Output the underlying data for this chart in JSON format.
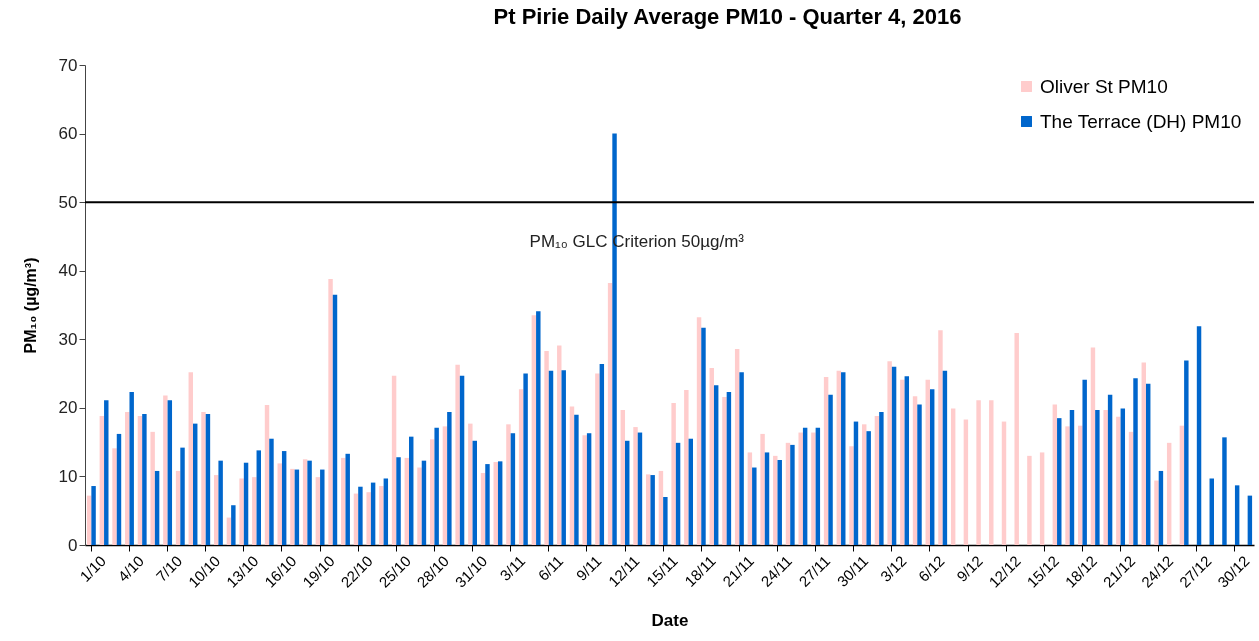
{
  "chart_data": {
    "type": "bar",
    "title": "Pt Pirie Daily Average PM10 - Quarter 4, 2016",
    "xlabel": "Date",
    "ylabel": "PM₁₀  (µg/m³)",
    "categories": [
      "1/10",
      null,
      null,
      "4/10",
      null,
      null,
      "7/10",
      null,
      null,
      "10/10",
      null,
      null,
      "13/10",
      null,
      null,
      "16/10",
      null,
      null,
      "19/10",
      null,
      null,
      "22/10",
      null,
      null,
      "25/10",
      null,
      null,
      "28/10",
      null,
      null,
      "31/10",
      null,
      null,
      "3/11",
      null,
      null,
      "6/11",
      null,
      null,
      "9/11",
      null,
      null,
      "12/11",
      null,
      null,
      "15/11",
      null,
      null,
      "18/11",
      null,
      null,
      "21/11",
      null,
      null,
      "24/11",
      null,
      null,
      "27/11",
      null,
      null,
      "30/11",
      null,
      null,
      "3/12",
      null,
      null,
      "6/12",
      null,
      null,
      "9/12",
      null,
      null,
      "12/12",
      null,
      null,
      "15/12",
      null,
      null,
      "18/12",
      null,
      null,
      "21/12",
      null,
      null,
      "24/12",
      null,
      null,
      "27/12",
      null,
      null,
      "30/12",
      null
    ],
    "series": [
      {
        "name": "Oliver St PM10",
        "color": "#ffcccc",
        "values": [
          7.2,
          18.8,
          14.1,
          19.4,
          18.8,
          16.5,
          21.8,
          10.8,
          25.2,
          19.4,
          10.2,
          4.0,
          9.7,
          9.9,
          20.4,
          11.9,
          11.1,
          12.5,
          9.9,
          38.8,
          12.7,
          7.5,
          7.7,
          8.6,
          24.7,
          12.7,
          11.3,
          15.4,
          17.3,
          26.3,
          17.7,
          10.5,
          12.1,
          17.6,
          22.7,
          33.5,
          28.3,
          29.1,
          20.2,
          16.0,
          25.0,
          38.2,
          19.7,
          17.2,
          10.3,
          10.8,
          20.7,
          22.6,
          33.2,
          25.8,
          21.6,
          28.6,
          13.5,
          16.2,
          13.0,
          14.9,
          16.4,
          16.4,
          24.5,
          25.4,
          14.4,
          17.6,
          18.8,
          26.8,
          24.1,
          21.7,
          24.1,
          31.3,
          19.9,
          18.3,
          21.1,
          21.1,
          18.0,
          30.9,
          13.0,
          13.5,
          20.5,
          17.3,
          17.4,
          28.8,
          19.7,
          18.7,
          16.5,
          26.6,
          9.4,
          14.9,
          17.4,
          null,
          null,
          null,
          null,
          null
        ]
      },
      {
        "name": "The Terrace (DH) PM10",
        "color": "#0066cc",
        "values": [
          8.6,
          21.1,
          16.2,
          22.3,
          19.1,
          10.8,
          21.1,
          14.2,
          17.7,
          19.1,
          12.3,
          5.8,
          12.0,
          13.8,
          15.5,
          13.7,
          11.0,
          12.3,
          11.0,
          36.5,
          13.3,
          8.5,
          9.1,
          9.7,
          12.8,
          15.8,
          12.3,
          17.1,
          19.4,
          24.7,
          15.2,
          11.8,
          12.2,
          16.3,
          25.0,
          34.1,
          25.4,
          25.5,
          19.0,
          16.3,
          26.4,
          60.0,
          15.2,
          16.4,
          10.2,
          7.0,
          14.9,
          15.5,
          31.7,
          23.3,
          22.3,
          25.2,
          11.3,
          13.5,
          12.4,
          14.6,
          17.1,
          17.1,
          21.9,
          25.2,
          18.0,
          16.6,
          19.4,
          26.0,
          24.6,
          20.5,
          22.7,
          25.4,
          null,
          null,
          null,
          null,
          null,
          null,
          null,
          null,
          18.5,
          19.7,
          24.1,
          19.7,
          21.9,
          19.9,
          24.3,
          23.5,
          10.8,
          null,
          26.9,
          31.9,
          9.7,
          15.7,
          8.7,
          7.2
        ]
      }
    ],
    "ylim": [
      0,
      70
    ],
    "yticks": [
      0,
      10,
      20,
      30,
      40,
      50,
      60,
      70
    ],
    "grid": false,
    "legend": "top right",
    "ref_lines": [
      {
        "axis": "y",
        "value": 50,
        "label": "PM₁₀ GLC Criterion 50µg/m³",
        "color": "#000000"
      }
    ]
  }
}
